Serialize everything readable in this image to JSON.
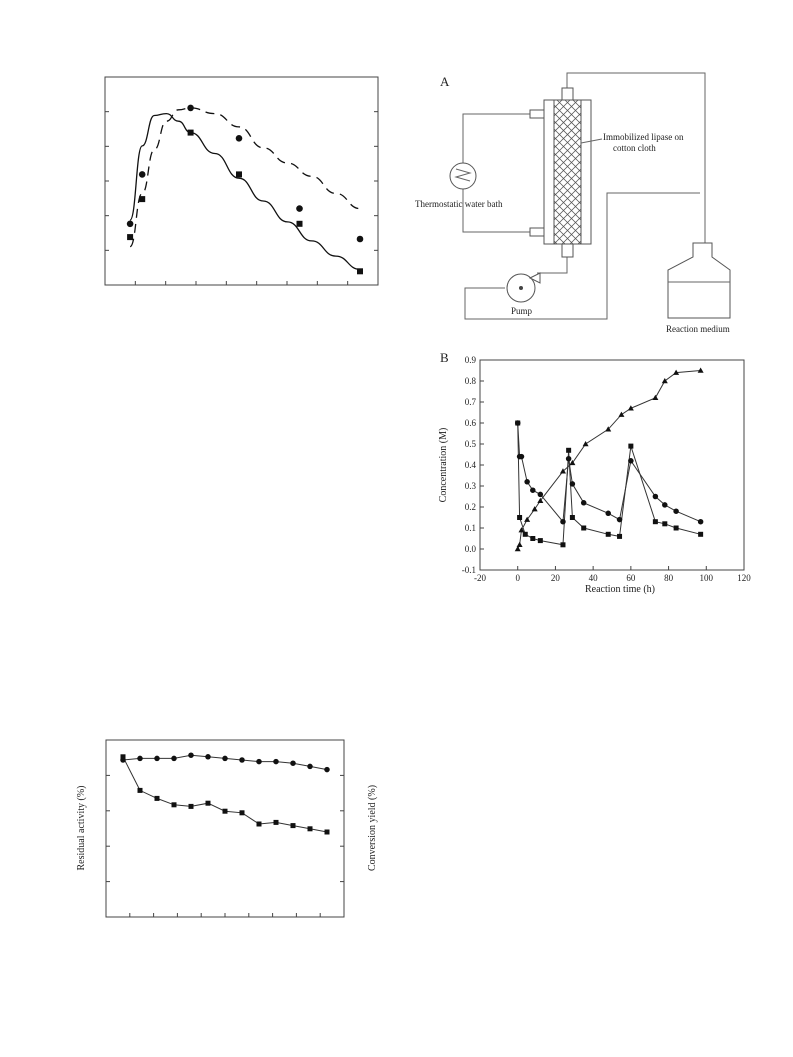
{
  "chart_data": [
    {
      "type": "scatter",
      "panel": "top-left",
      "title": "",
      "xlabel": "",
      "ylabel": "",
      "tick_labels_visible": false,
      "xlim": [
        0,
        10
      ],
      "ylim": [
        0,
        10
      ],
      "series": [
        {
          "marker": "circle",
          "x": [
            0.5,
            1.0,
            3.0,
            5.0,
            7.5,
            10.0
          ],
          "y": [
            2.8,
            5.4,
            8.9,
            7.3,
            3.6,
            2.0
          ]
        },
        {
          "marker": "square",
          "x": [
            0.5,
            1.0,
            3.0,
            5.0,
            7.5,
            10.0
          ],
          "y": [
            2.1,
            4.1,
            7.6,
            5.4,
            2.8,
            0.3
          ]
        }
      ],
      "fit_curves": [
        {
          "style": "solid",
          "x": [
            0.5,
            1.0,
            1.5,
            2.0,
            2.5,
            3.0,
            4.0,
            5.0,
            6.0,
            7.0,
            8.0,
            9.0,
            10.0
          ],
          "y": [
            3.0,
            6.9,
            8.5,
            8.6,
            8.2,
            7.6,
            6.5,
            5.2,
            4.0,
            2.9,
            1.9,
            1.1,
            0.4
          ]
        },
        {
          "style": "dashed",
          "x": [
            0.5,
            1.0,
            1.5,
            2.0,
            2.5,
            3.0,
            4.0,
            5.0,
            6.0,
            7.0,
            8.0,
            9.0,
            10.0
          ],
          "y": [
            1.6,
            4.4,
            6.7,
            8.2,
            8.8,
            8.9,
            8.6,
            7.9,
            6.8,
            6.0,
            5.3,
            4.4,
            3.6
          ]
        }
      ]
    },
    {
      "type": "line",
      "panel": "B",
      "panel_label": "B",
      "title": "",
      "xlabel": "Reaction time (h)",
      "ylabel": "Concentration (M)",
      "xlim": [
        -20,
        120
      ],
      "ylim": [
        -0.1,
        0.9
      ],
      "x_ticks": [
        "-20",
        "0",
        "20",
        "40",
        "60",
        "80",
        "100",
        "120"
      ],
      "y_ticks": [
        "-0.1",
        "0.0",
        "0.1",
        "0.2",
        "0.3",
        "0.4",
        "0.5",
        "0.6",
        "0.7",
        "0.8",
        "0.9"
      ],
      "grid": false,
      "series": [
        {
          "marker": "square",
          "x": [
            0,
            1,
            4,
            8,
            12,
            24,
            27,
            29,
            35,
            48,
            54,
            60,
            73,
            78,
            84,
            97
          ],
          "y": [
            0.6,
            0.15,
            0.07,
            0.05,
            0.04,
            0.02,
            0.47,
            0.15,
            0.1,
            0.07,
            0.06,
            0.49,
            0.13,
            0.12,
            0.1,
            0.07
          ]
        },
        {
          "marker": "circle",
          "x": [
            0,
            1,
            2,
            5,
            8,
            12,
            24,
            27,
            29,
            35,
            48,
            54,
            60,
            73,
            78,
            84,
            97
          ],
          "y": [
            0.6,
            0.44,
            0.44,
            0.32,
            0.28,
            0.26,
            0.13,
            0.43,
            0.31,
            0.22,
            0.17,
            0.14,
            0.42,
            0.25,
            0.21,
            0.18,
            0.13
          ]
        },
        {
          "marker": "triangle",
          "x": [
            0,
            1,
            2,
            5,
            9,
            12,
            24,
            29,
            36,
            48,
            55,
            60,
            73,
            78,
            84,
            97
          ],
          "y": [
            0.0,
            0.02,
            0.09,
            0.14,
            0.19,
            0.23,
            0.37,
            0.41,
            0.5,
            0.57,
            0.64,
            0.67,
            0.72,
            0.8,
            0.84,
            0.85
          ]
        }
      ]
    },
    {
      "type": "line",
      "panel": "bottom-left",
      "title": "",
      "xlabel": "",
      "ylabel": "Residual activity (%)",
      "y2label": "Conversion yield (%)",
      "tick_labels_visible": false,
      "xlim": [
        0,
        14
      ],
      "ylim": [
        0,
        100
      ],
      "series": [
        {
          "marker": "circle",
          "x": [
            1,
            2,
            3,
            4,
            5,
            6,
            7,
            8,
            9,
            10,
            11,
            12,
            13
          ],
          "y": [
            95,
            96,
            96,
            96,
            98,
            97,
            96,
            95,
            94,
            94,
            93,
            91,
            89
          ]
        },
        {
          "marker": "square",
          "x": [
            1,
            2,
            3,
            4,
            5,
            6,
            7,
            8,
            9,
            10,
            11,
            12,
            13
          ],
          "y": [
            97,
            76,
            71,
            67,
            66,
            68,
            63,
            62,
            55,
            56,
            54,
            52,
            50
          ]
        }
      ]
    }
  ],
  "diagram_A": {
    "panel_label": "A",
    "labels": {
      "lipase": [
        "Immobilized lipase on",
        "cotton cloth"
      ],
      "water_bath": "Thermostatic water bath",
      "pump": "Pump",
      "medium": "Reaction medium"
    }
  }
}
